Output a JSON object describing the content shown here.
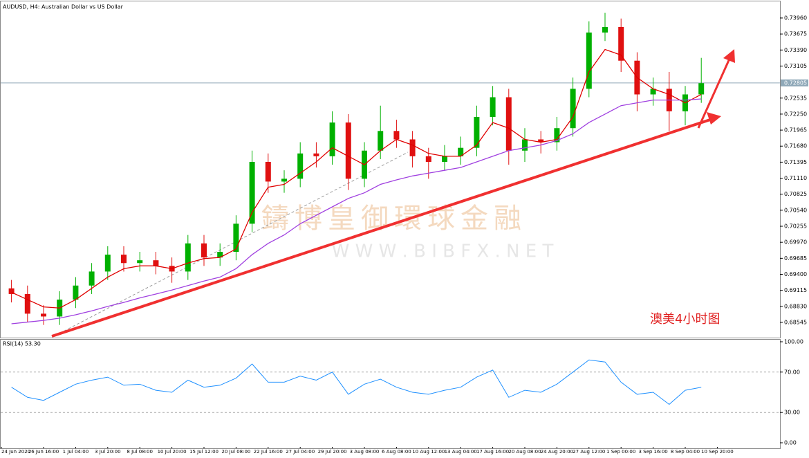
{
  "chart_data": [
    {
      "type": "candlestick",
      "title": "AUDUSD, H4: Australian Dollar vs US Dollar",
      "x_labels": [
        "24 Jun 2020",
        "26 Jun 16:00",
        "1 Jul 04:00",
        "3 Jul 20:00",
        "8 Jul 08:00",
        "10 Jul 20:00",
        "15 Jul 12:00",
        "20 Jul 08:00",
        "22 Jul 16:00",
        "27 Jul 04:00",
        "29 Jul 20:00",
        "3 Aug 08:00",
        "6 Aug 08:00",
        "10 Aug 12:00",
        "13 Aug 04:00",
        "17 Aug 16:00",
        "20 Aug 08:00",
        "24 Aug 20:00",
        "27 Aug 12:00",
        "1 Sep 00:00",
        "3 Sep 16:00",
        "8 Sep 04:00",
        "10 Sep 20:00"
      ],
      "open": [
        0.6915,
        0.6905,
        0.687,
        0.6865,
        0.6895,
        0.692,
        0.6945,
        0.6975,
        0.696,
        0.6965,
        0.6955,
        0.6945,
        0.6995,
        0.697,
        0.698,
        0.703,
        0.714,
        0.7105,
        0.711,
        0.7155,
        0.715,
        0.721,
        0.711,
        0.716,
        0.7195,
        0.718,
        0.715,
        0.714,
        0.715,
        0.7165,
        0.722,
        0.7255,
        0.716,
        0.718,
        0.7175,
        0.72,
        0.727,
        0.737,
        0.738,
        0.732,
        0.726,
        0.727,
        0.723,
        0.726
      ],
      "high": [
        0.693,
        0.692,
        0.6885,
        0.691,
        0.6935,
        0.696,
        0.699,
        0.699,
        0.698,
        0.698,
        0.697,
        0.701,
        0.701,
        0.6995,
        0.7045,
        0.716,
        0.7155,
        0.7125,
        0.7175,
        0.7175,
        0.723,
        0.7225,
        0.7175,
        0.724,
        0.7215,
        0.7195,
        0.7165,
        0.717,
        0.7185,
        0.724,
        0.7275,
        0.727,
        0.72,
        0.7195,
        0.722,
        0.729,
        0.739,
        0.7405,
        0.7395,
        0.7335,
        0.729,
        0.73,
        0.7275,
        0.7325
      ],
      "low": [
        0.689,
        0.6855,
        0.685,
        0.685,
        0.688,
        0.6905,
        0.693,
        0.6945,
        0.6945,
        0.694,
        0.6925,
        0.693,
        0.6955,
        0.6955,
        0.6965,
        0.7015,
        0.7085,
        0.7085,
        0.7095,
        0.713,
        0.7135,
        0.709,
        0.7095,
        0.7145,
        0.7165,
        0.713,
        0.711,
        0.7125,
        0.7135,
        0.715,
        0.7205,
        0.7135,
        0.714,
        0.7155,
        0.716,
        0.7185,
        0.7255,
        0.7355,
        0.73,
        0.723,
        0.724,
        0.7195,
        0.7205,
        0.7245
      ],
      "close": [
        0.6905,
        0.687,
        0.6865,
        0.6895,
        0.692,
        0.6945,
        0.6975,
        0.696,
        0.6965,
        0.6955,
        0.6945,
        0.6995,
        0.697,
        0.698,
        0.703,
        0.714,
        0.7105,
        0.711,
        0.7155,
        0.715,
        0.721,
        0.711,
        0.716,
        0.7195,
        0.718,
        0.715,
        0.714,
        0.715,
        0.7165,
        0.722,
        0.7255,
        0.716,
        0.718,
        0.7175,
        0.72,
        0.727,
        0.737,
        0.738,
        0.732,
        0.726,
        0.727,
        0.723,
        0.726,
        0.728
      ],
      "up_color": "#00b000",
      "down_color": "#e01010",
      "overlays": [
        {
          "color": "#e00000",
          "values": [
            0.6908,
            0.6895,
            0.6882,
            0.688,
            0.6895,
            0.6915,
            0.6935,
            0.695,
            0.6955,
            0.6955,
            0.695,
            0.696,
            0.6968,
            0.697,
            0.6985,
            0.705,
            0.7095,
            0.71,
            0.712,
            0.714,
            0.7165,
            0.715,
            0.7135,
            0.716,
            0.718,
            0.717,
            0.7155,
            0.715,
            0.715,
            0.717,
            0.721,
            0.72,
            0.718,
            0.7175,
            0.718,
            0.722,
            0.73,
            0.734,
            0.733,
            0.729,
            0.727,
            0.726,
            0.7245,
            0.726
          ]
        },
        {
          "color": "#a040e0",
          "values": [
            0.6852,
            0.6855,
            0.6858,
            0.6862,
            0.6868,
            0.6875,
            0.6883,
            0.689,
            0.6898,
            0.6905,
            0.6912,
            0.692,
            0.6928,
            0.6935,
            0.695,
            0.6975,
            0.6995,
            0.701,
            0.703,
            0.7045,
            0.706,
            0.7075,
            0.7085,
            0.71,
            0.7108,
            0.7115,
            0.712,
            0.7125,
            0.713,
            0.714,
            0.715,
            0.716,
            0.7165,
            0.717,
            0.7178,
            0.719,
            0.721,
            0.7225,
            0.724,
            0.7245,
            0.725,
            0.725,
            0.725,
            0.7252
          ]
        }
      ],
      "ylim": [
        0.68274,
        0.74255
      ],
      "yticks": [
        {
          "value": 0.7396,
          "label": "0.73960"
        },
        {
          "value": 0.73675,
          "label": "0.73675"
        },
        {
          "value": 0.7339,
          "label": "0.73390"
        },
        {
          "value": 0.73105,
          "label": "0.73105"
        },
        {
          "value": 0.72535,
          "label": "0.72535"
        },
        {
          "value": 0.7225,
          "label": "0.72250"
        },
        {
          "value": 0.71965,
          "label": "0.71965"
        },
        {
          "value": 0.7168,
          "label": "0.71680"
        },
        {
          "value": 0.71395,
          "label": "0.71395"
        },
        {
          "value": 0.7111,
          "label": "0.71110"
        },
        {
          "value": 0.70825,
          "label": "0.70825"
        },
        {
          "value": 0.7054,
          "label": "0.70540"
        },
        {
          "value": 0.70255,
          "label": "0.70255"
        },
        {
          "value": 0.6997,
          "label": "0.69970"
        },
        {
          "value": 0.69685,
          "label": "0.69685"
        },
        {
          "value": 0.694,
          "label": "0.69400"
        },
        {
          "value": 0.69115,
          "label": "0.69115"
        },
        {
          "value": 0.6883,
          "label": "0.68830"
        },
        {
          "value": 0.68545,
          "label": "0.68545"
        }
      ],
      "bid": {
        "value": 0.72805,
        "label": "0.72805"
      },
      "annotation": "澳美4小时图",
      "watermark": [
        "鑄博皇御環球金融",
        "W W W . B I B F X . N E T"
      ]
    },
    {
      "type": "line",
      "title": "RSI(14) 53.30",
      "color": "#1e90ff",
      "values": [
        55,
        45,
        42,
        50,
        58,
        62,
        65,
        57,
        58,
        52,
        50,
        62,
        55,
        57,
        64,
        78,
        60,
        60,
        66,
        62,
        70,
        48,
        58,
        63,
        55,
        50,
        48,
        52,
        55,
        65,
        72,
        45,
        52,
        50,
        58,
        70,
        82,
        80,
        60,
        48,
        50,
        38,
        52,
        55
      ],
      "ylim": [
        0,
        100
      ],
      "yticks": [
        {
          "value": 100,
          "label": "100.00"
        },
        {
          "value": 70,
          "label": "70.00"
        },
        {
          "value": 30,
          "label": "30.00"
        },
        {
          "value": 0,
          "label": "0.00"
        }
      ]
    }
  ]
}
